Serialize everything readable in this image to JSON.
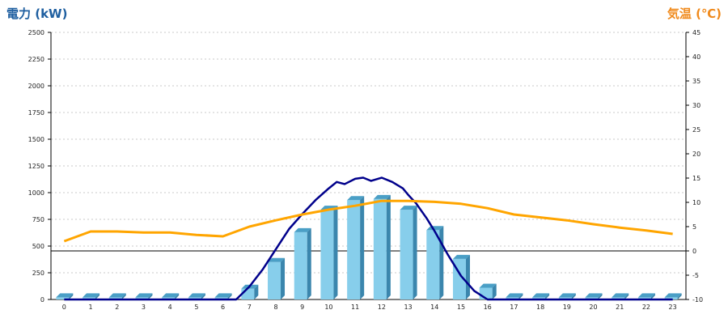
{
  "chart_data": {
    "type": "bar",
    "categories": [
      "0",
      "1",
      "2",
      "3",
      "4",
      "5",
      "6",
      "7",
      "8",
      "9",
      "10",
      "11",
      "12",
      "13",
      "14",
      "15",
      "16",
      "17",
      "18",
      "19",
      "20",
      "21",
      "22",
      "23"
    ],
    "y_left_label": "電力 (kW)",
    "y_right_label": "気温 (℃)",
    "y_left_ticks": [
      "0",
      "250",
      "500",
      "750",
      "1000",
      "1250",
      "1500",
      "1750",
      "2000",
      "2250",
      "2500"
    ],
    "y_right_ticks": [
      "-10",
      "-5",
      "0",
      "5",
      "10",
      "15",
      "20",
      "25",
      "30",
      "35",
      "40",
      "45"
    ],
    "y_left_range": [
      0,
      2500
    ],
    "y_right_range": [
      -10,
      45
    ],
    "grid": true,
    "series": [
      {
        "axis": "left",
        "kind": "bar",
        "color": "#87ceeb",
        "values": [
          20,
          20,
          20,
          20,
          20,
          20,
          20,
          100,
          350,
          630,
          840,
          930,
          940,
          840,
          650,
          380,
          110,
          20,
          20,
          20,
          20,
          20,
          20,
          20
        ]
      },
      {
        "axis": "left",
        "kind": "line",
        "color": "#00008b",
        "points": [
          [
            0,
            0
          ],
          [
            6.5,
            0
          ],
          [
            7,
            120
          ],
          [
            7.5,
            280
          ],
          [
            8,
            470
          ],
          [
            8.5,
            660
          ],
          [
            9,
            800
          ],
          [
            9.5,
            930
          ],
          [
            10,
            1040
          ],
          [
            10.3,
            1100
          ],
          [
            10.6,
            1080
          ],
          [
            11,
            1130
          ],
          [
            11.3,
            1140
          ],
          [
            11.6,
            1110
          ],
          [
            12,
            1140
          ],
          [
            12.4,
            1100
          ],
          [
            12.8,
            1040
          ],
          [
            13,
            980
          ],
          [
            13.3,
            900
          ],
          [
            13.7,
            760
          ],
          [
            14,
            640
          ],
          [
            14.5,
            420
          ],
          [
            15,
            220
          ],
          [
            15.5,
            80
          ],
          [
            16,
            0
          ],
          [
            23,
            0
          ]
        ]
      },
      {
        "axis": "right",
        "kind": "line",
        "color": "#ffa500",
        "values": [
          2,
          4,
          4,
          3.8,
          3.8,
          3.3,
          3,
          5,
          6.3,
          7.5,
          8.5,
          9.3,
          10.3,
          10.3,
          10.1,
          9.7,
          8.8,
          7.5,
          6.9,
          6.3,
          5.5,
          4.8,
          4.2,
          3.5
        ]
      }
    ]
  }
}
